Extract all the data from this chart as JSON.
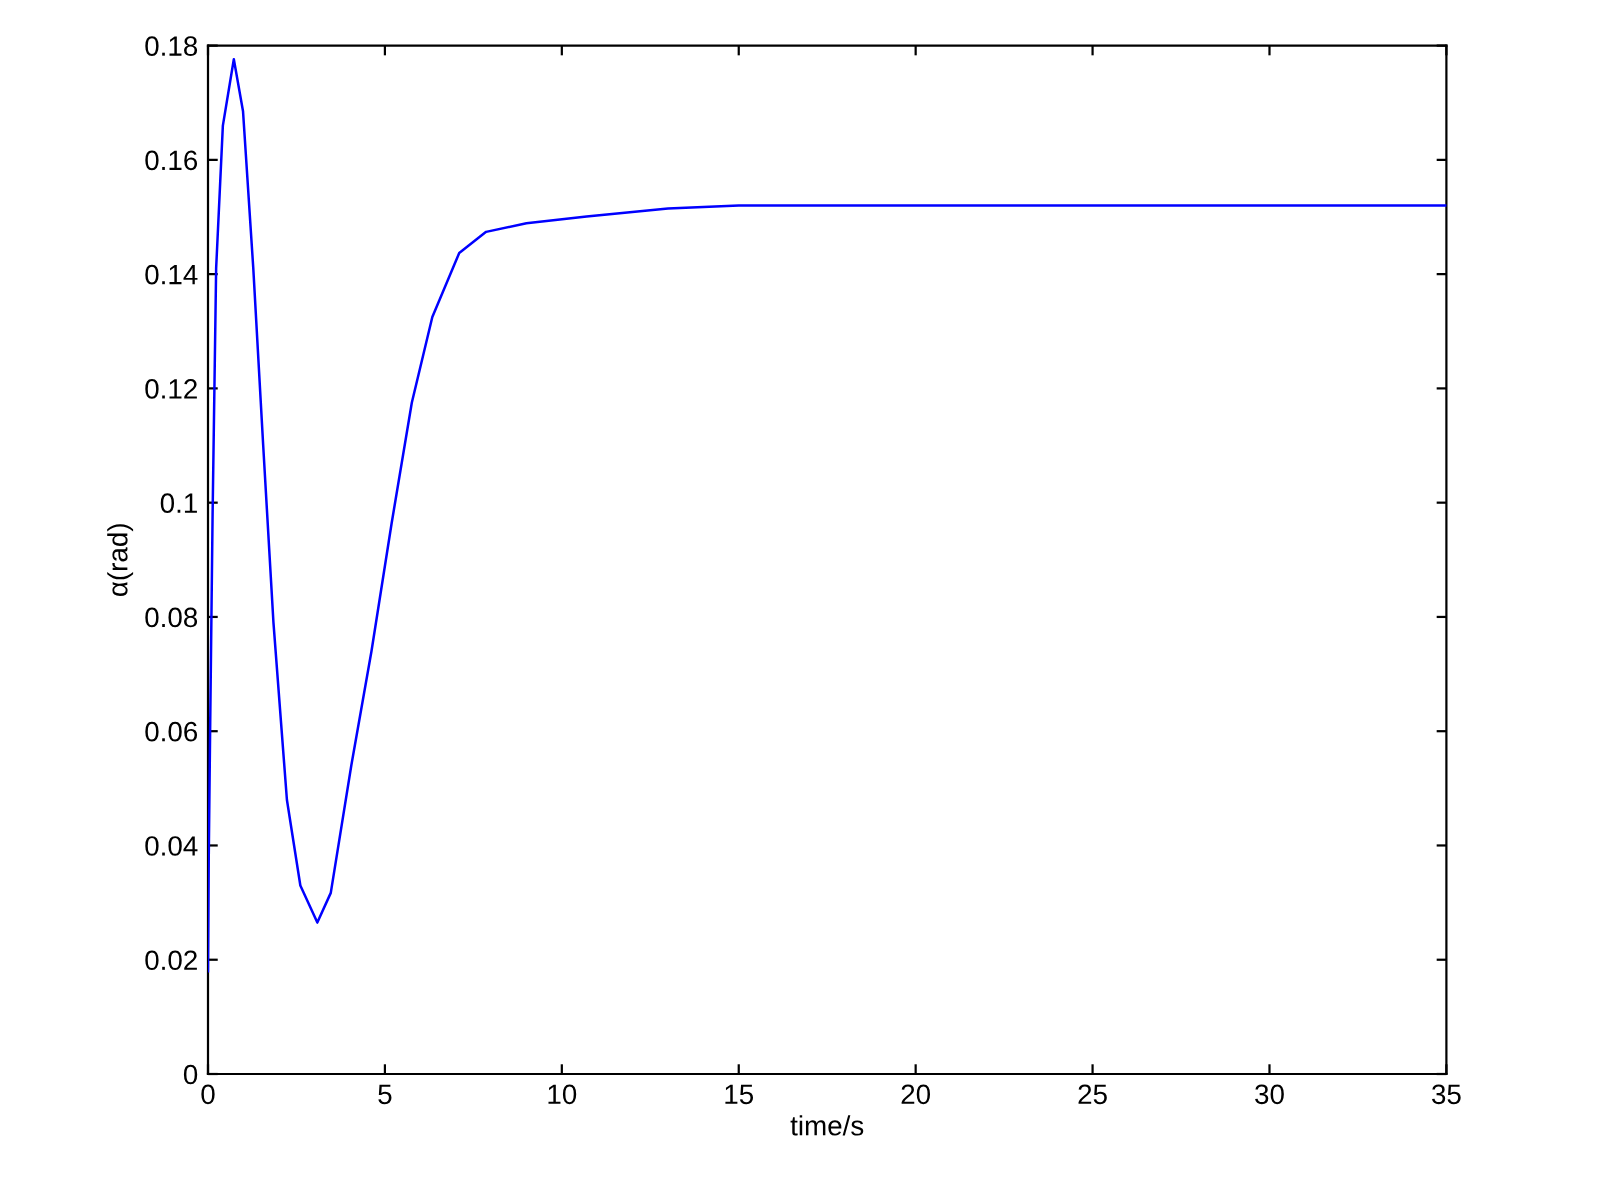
{
  "chart_data": {
    "type": "line",
    "xlabel": "time/s",
    "ylabel": "α(rad)",
    "series": [
      {
        "color": "#0000ff",
        "x": [
          0,
          0.02,
          0.06,
          0.13,
          0.23,
          0.42,
          0.73,
          0.99,
          1.28,
          1.56,
          1.85,
          2.23,
          2.61,
          3.09,
          3.47,
          4.05,
          4.62,
          5.19,
          5.76,
          6.34,
          7.1,
          7.86,
          9.0,
          10.7,
          13,
          15,
          20,
          25,
          30,
          35
        ],
        "values": [
          0.018,
          0.037,
          0.06,
          0.098,
          0.141,
          0.166,
          0.1776,
          0.1685,
          0.141,
          0.11,
          0.079,
          0.048,
          0.033,
          0.0265,
          0.0317,
          0.054,
          0.074,
          0.0964,
          0.1175,
          0.1325,
          0.1437,
          0.1474,
          0.1489,
          0.1501,
          0.1515,
          0.152,
          0.152,
          0.152,
          0.152,
          0.152
        ]
      }
    ],
    "xlim": [
      0,
      35
    ],
    "xticks": [
      0,
      5,
      10,
      15,
      20,
      25,
      30,
      35
    ],
    "ylim": [
      0,
      0.18
    ],
    "yticks": [
      0,
      0.02,
      0.04,
      0.06,
      0.08,
      0.1,
      0.12,
      0.14,
      0.16,
      0.18
    ],
    "grid": false,
    "legend": false
  }
}
